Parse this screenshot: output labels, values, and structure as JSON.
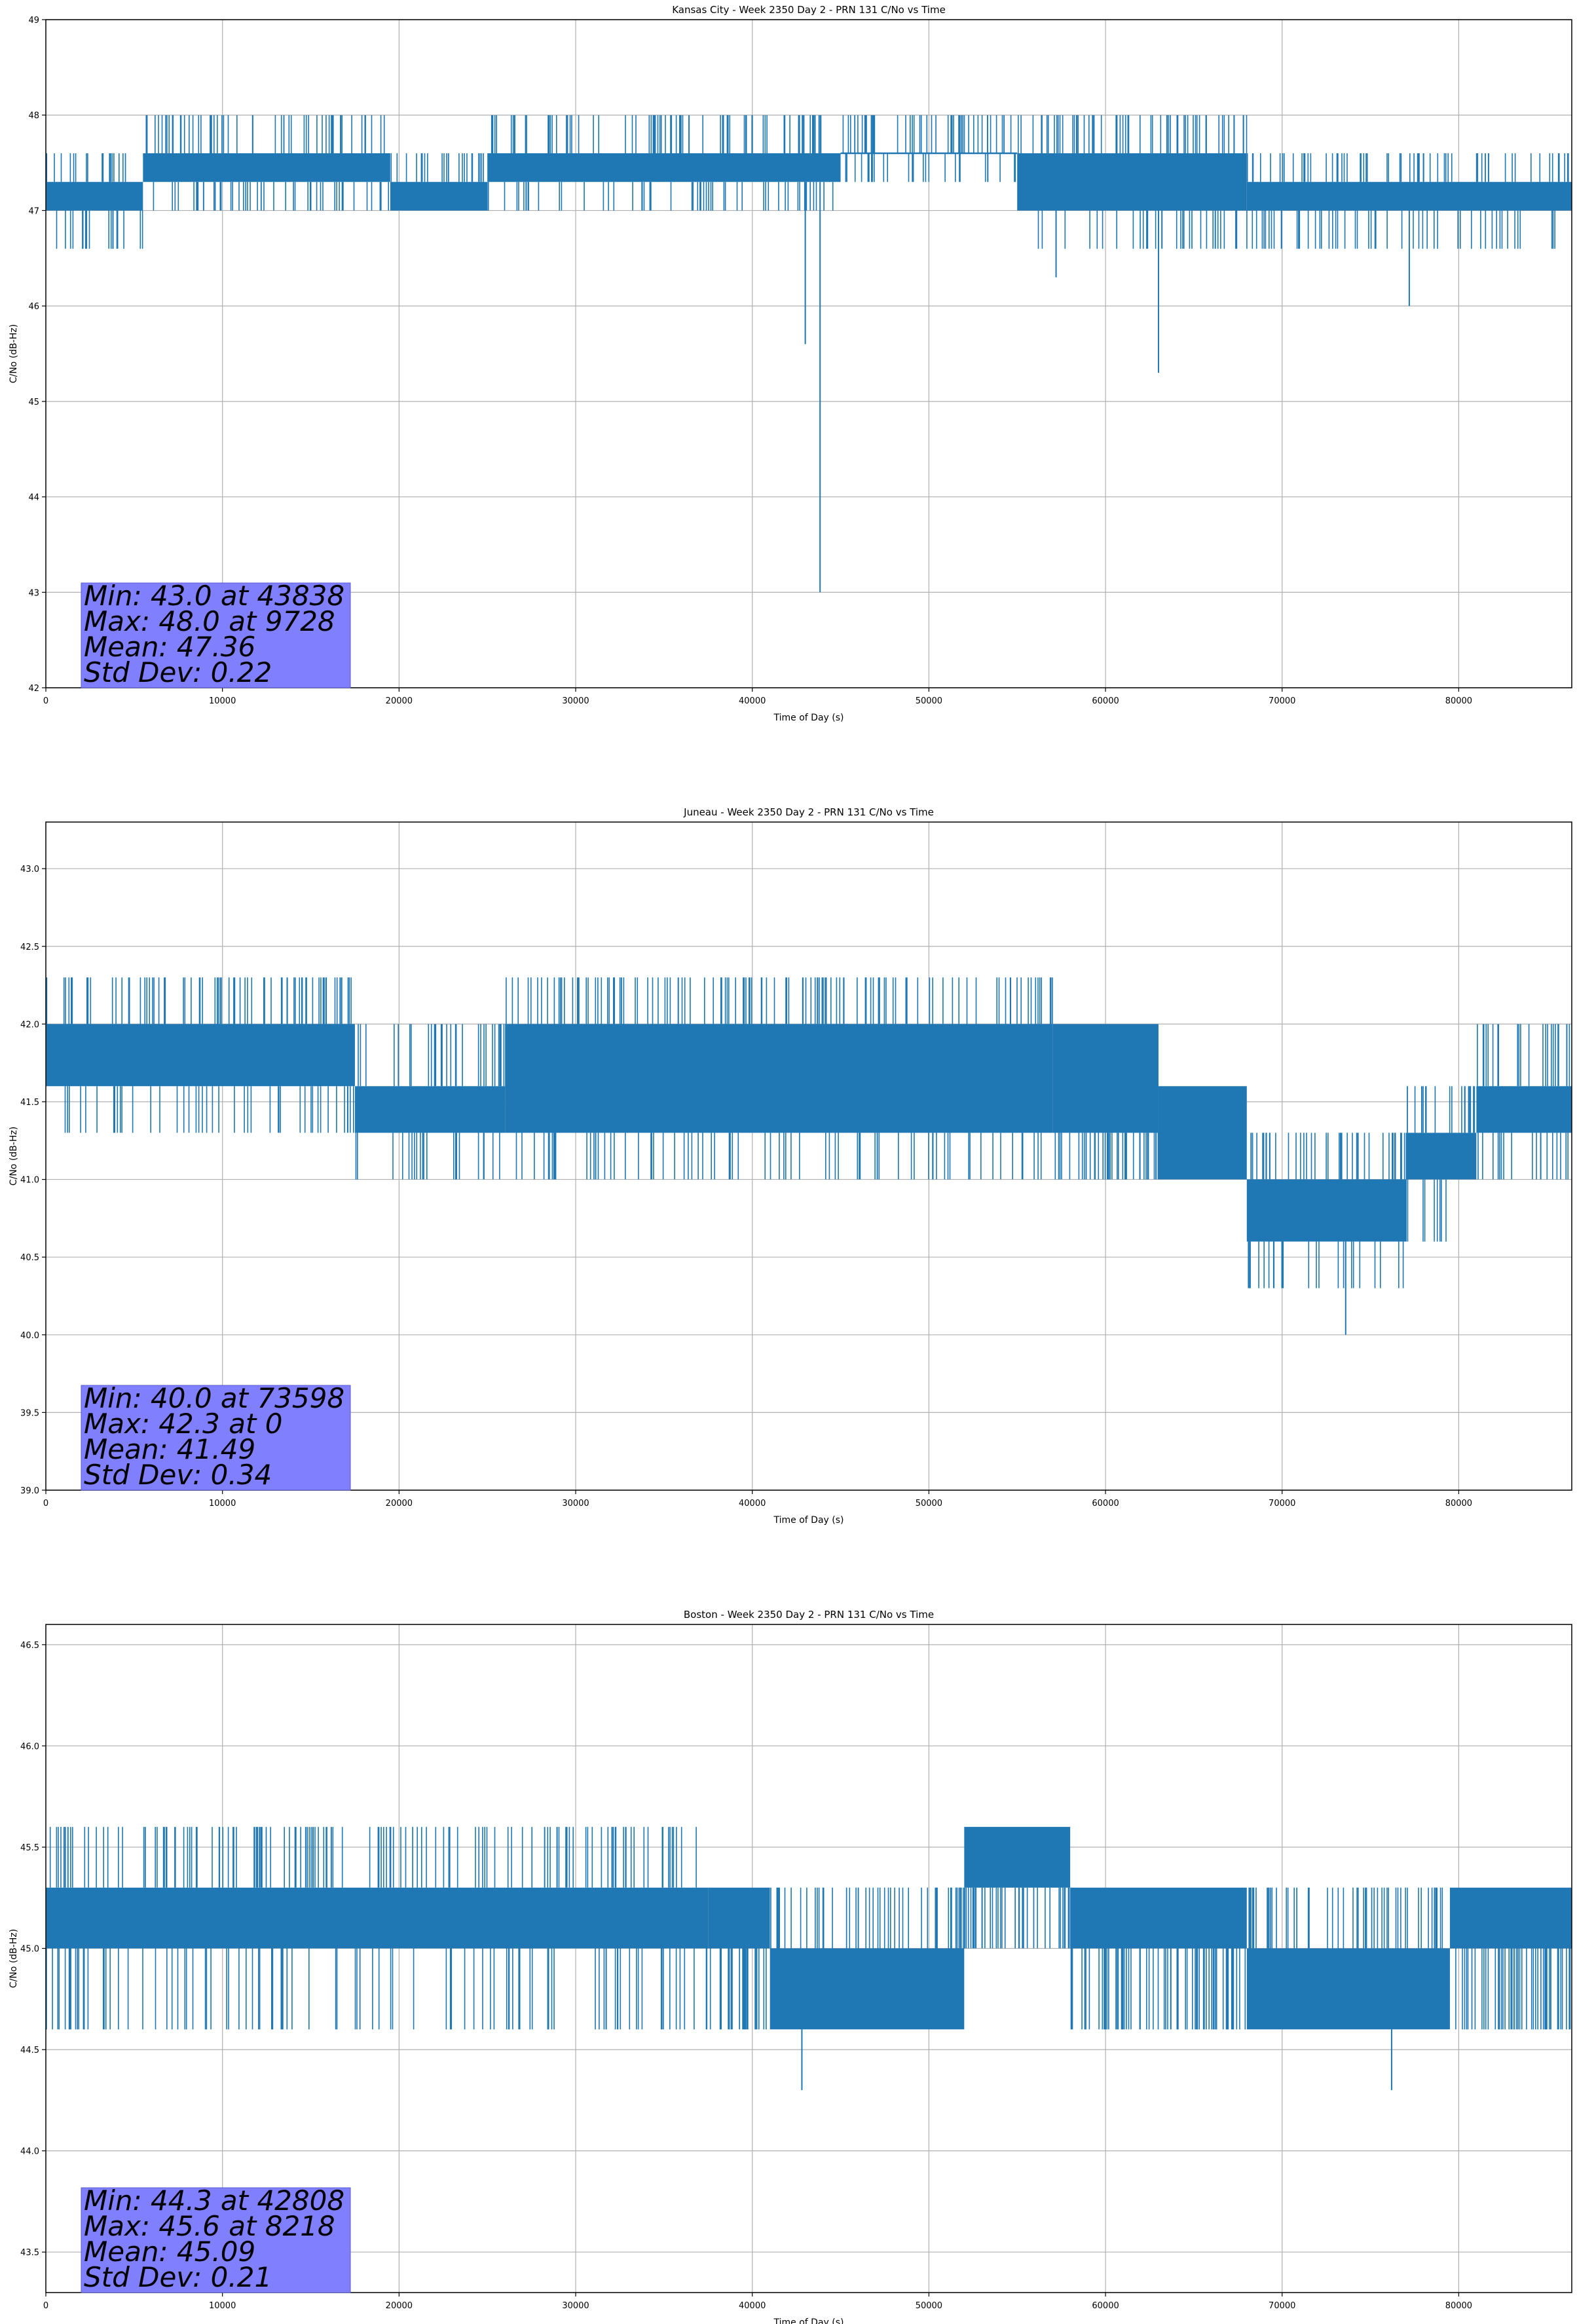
{
  "figure": {
    "background": "#ffffff",
    "line_color": "#1f77b4",
    "stats_box_color": "#8080ff"
  },
  "chart_data": [
    {
      "type": "line",
      "title": "Kansas City - Week 2350 Day 2 - PRN 131 C/No vs Time",
      "xlabel": "Time of Day (s)",
      "ylabel": "C/No (dB-Hz)",
      "xlim": [
        0,
        86400
      ],
      "ylim": [
        42,
        49
      ],
      "xticks": [
        0,
        10000,
        20000,
        30000,
        40000,
        50000,
        60000,
        70000,
        80000
      ],
      "yticks": [
        42,
        43,
        44,
        45,
        46,
        47,
        48,
        49
      ],
      "grid": true,
      "resolution_db": 0.3,
      "segments": [
        {
          "x_start": 0,
          "x_end": 5500,
          "low": 47.0,
          "high": 47.3,
          "spike_up": 47.6,
          "spike_down": 46.6
        },
        {
          "x_start": 5500,
          "x_end": 19500,
          "low": 47.3,
          "high": 47.6,
          "spike_up": 48.0,
          "spike_down": 47.0
        },
        {
          "x_start": 19500,
          "x_end": 25000,
          "low": 47.0,
          "high": 47.3,
          "spike_up": 47.6,
          "spike_down": 47.0
        },
        {
          "x_start": 25000,
          "x_end": 45000,
          "low": 47.3,
          "high": 47.6,
          "spike_up": 48.0,
          "spike_down": 47.0
        },
        {
          "x_start": 45000,
          "x_end": 55000,
          "low": 47.6,
          "high": 47.6,
          "spike_up": 48.0,
          "spike_down": 47.3
        },
        {
          "x_start": 55000,
          "x_end": 68000,
          "low": 47.0,
          "high": 47.6,
          "spike_up": 48.0,
          "spike_down": 46.6
        },
        {
          "x_start": 68000,
          "x_end": 86400,
          "low": 47.0,
          "high": 47.3,
          "spike_up": 47.6,
          "spike_down": 46.6
        }
      ],
      "dips": [
        {
          "x": 3800,
          "y": 46.6
        },
        {
          "x": 43000,
          "y": 45.6
        },
        {
          "x": 43838,
          "y": 43.0
        },
        {
          "x": 57200,
          "y": 46.3
        },
        {
          "x": 63000,
          "y": 45.3
        },
        {
          "x": 77200,
          "y": 46.0
        }
      ],
      "stats": {
        "min": "Min: 43.0 at 43838",
        "max": "Max: 48.0 at 9728",
        "mean": "Mean: 47.36",
        "std": "Std Dev: 0.22"
      }
    },
    {
      "type": "line",
      "title": "Juneau - Week 2350 Day 2 - PRN 131 C/No vs Time",
      "xlabel": "Time of Day (s)",
      "ylabel": "C/No (dB-Hz)",
      "xlim": [
        0,
        86400
      ],
      "ylim": [
        39.0,
        43.3
      ],
      "xticks": [
        0,
        10000,
        20000,
        30000,
        40000,
        50000,
        60000,
        70000,
        80000
      ],
      "yticks": [
        39.0,
        39.5,
        40.0,
        40.5,
        41.0,
        41.5,
        42.0,
        42.5,
        43.0
      ],
      "grid": true,
      "resolution_db": 0.3,
      "segments": [
        {
          "x_start": 0,
          "x_end": 17500,
          "low": 41.6,
          "high": 42.0,
          "spike_up": 42.3,
          "spike_down": 41.3
        },
        {
          "x_start": 17500,
          "x_end": 26000,
          "low": 41.3,
          "high": 41.6,
          "spike_up": 42.0,
          "spike_down": 41.0
        },
        {
          "x_start": 26000,
          "x_end": 57000,
          "low": 41.3,
          "high": 42.0,
          "spike_up": 42.3,
          "spike_down": 41.0
        },
        {
          "x_start": 57000,
          "x_end": 63000,
          "low": 41.3,
          "high": 42.0,
          "spike_up": 42.0,
          "spike_down": 41.0
        },
        {
          "x_start": 63000,
          "x_end": 68000,
          "low": 41.0,
          "high": 41.6,
          "spike_up": 41.6,
          "spike_down": 41.0
        },
        {
          "x_start": 68000,
          "x_end": 77000,
          "low": 40.6,
          "high": 41.0,
          "spike_up": 41.3,
          "spike_down": 40.3
        },
        {
          "x_start": 77000,
          "x_end": 81000,
          "low": 41.0,
          "high": 41.3,
          "spike_up": 41.6,
          "spike_down": 40.6
        },
        {
          "x_start": 81000,
          "x_end": 86400,
          "low": 41.3,
          "high": 41.6,
          "spike_up": 42.0,
          "spike_down": 41.0
        }
      ],
      "dips": [
        {
          "x": 73598,
          "y": 40.0
        }
      ],
      "stats": {
        "min": "Min: 40.0 at 73598",
        "max": "Max: 42.3 at 0",
        "mean": "Mean: 41.49",
        "std": "Std Dev: 0.34"
      }
    },
    {
      "type": "line",
      "title": "Boston - Week 2350 Day 2 - PRN 131 C/No vs Time",
      "xlabel": "Time of Day (s)",
      "ylabel": "C/No (dB-Hz)",
      "xlim": [
        0,
        86400
      ],
      "ylim": [
        43.3,
        46.6
      ],
      "xticks": [
        0,
        10000,
        20000,
        30000,
        40000,
        50000,
        60000,
        70000,
        80000
      ],
      "yticks": [
        43.5,
        44.0,
        44.5,
        45.0,
        45.5,
        46.0,
        46.5
      ],
      "grid": true,
      "resolution_db": 0.3,
      "segments": [
        {
          "x_start": 0,
          "x_end": 37500,
          "low": 45.0,
          "high": 45.3,
          "spike_up": 45.6,
          "spike_down": 44.6
        },
        {
          "x_start": 37500,
          "x_end": 41000,
          "low": 45.0,
          "high": 45.3,
          "spike_up": 45.3,
          "spike_down": 44.6
        },
        {
          "x_start": 41000,
          "x_end": 52000,
          "low": 44.6,
          "high": 45.0,
          "spike_up": 45.3,
          "spike_down": 44.6
        },
        {
          "x_start": 52000,
          "x_end": 58000,
          "low": 45.3,
          "high": 45.6,
          "spike_up": 45.6,
          "spike_down": 45.0
        },
        {
          "x_start": 58000,
          "x_end": 68000,
          "low": 45.0,
          "high": 45.3,
          "spike_up": 45.3,
          "spike_down": 44.6
        },
        {
          "x_start": 68000,
          "x_end": 79500,
          "low": 44.6,
          "high": 45.0,
          "spike_up": 45.3,
          "spike_down": 44.6
        },
        {
          "x_start": 79500,
          "x_end": 86400,
          "low": 45.0,
          "high": 45.3,
          "spike_up": 45.3,
          "spike_down": 44.6
        }
      ],
      "dips": [
        {
          "x": 42808,
          "y": 44.3
        },
        {
          "x": 76200,
          "y": 44.3
        }
      ],
      "stats": {
        "min": "Min: 44.3 at 42808",
        "max": "Max: 45.6 at 8218",
        "mean": "Mean: 45.09",
        "std": "Std Dev: 0.21"
      }
    }
  ]
}
